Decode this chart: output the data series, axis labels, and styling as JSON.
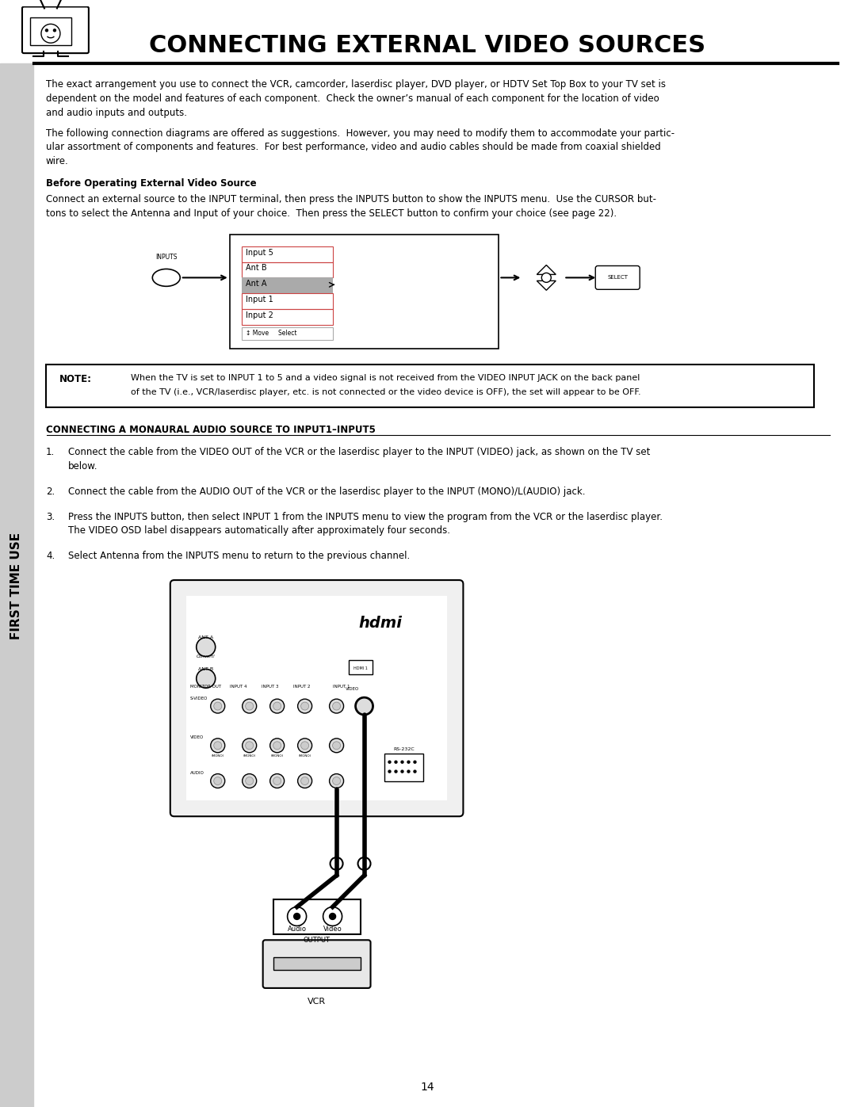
{
  "title": "CONNECTING EXTERNAL VIDEO SOURCES",
  "page_num": "14",
  "bg_color": "#ffffff",
  "sidebar_color": "#808080",
  "sidebar_text": "FIRST TIME USE",
  "para1": "The exact arrangement you use to connect the VCR, camcorder, laserdisc player, DVD player, or HDTV Set Top Box to your TV set is\ndependent on the model and features of each component.  Check the owner’s manual of each component for the location of video\nand audio inputs and outputs.",
  "para2": "The following connection diagrams are offered as suggestions.  However, you may need to modify them to accommodate your partic-\nular assortment of components and features.  For best performance, video and audio cables should be made from coaxial shielded\nwire.",
  "bold_heading": "Before Operating External Video Source",
  "para3": "Connect an external source to the INPUT terminal, then press the INPUTS button to show the INPUTS menu.  Use the CURSOR but-\ntons to select the Antenna and Input of your choice.  Then press the SELECT button to confirm your choice (see page 22).",
  "note_text": "When the TV is set to INPUT 1 to 5 and a video signal is not received from the VIDEO INPUT JACK on the back panel\nof the TV (i.e., VCR/laserdisc player, etc. is not connected or the video device is OFF), the set will appear to be OFF.",
  "section_heading": "CONNECTING A MONAURAL AUDIO SOURCE TO INPUT1–INPUT5",
  "steps": [
    "Connect the cable from the VIDEO OUT of the VCR or the laserdisc player to the INPUT (VIDEO) jack, as shown on the TV set\nbelow.",
    "Connect the cable from the AUDIO OUT of the VCR or the laserdisc player to the INPUT (MONO)/L(AUDIO) jack.",
    "Press the INPUTS button, then select INPUT 1 from the INPUTS menu to view the program from the VCR or the laserdisc player.\nThe VIDEO OSD label disappears automatically after approximately four seconds.",
    "Select Antenna from the INPUTS menu to return to the previous channel."
  ],
  "menu_items": [
    "Input 5",
    "Ant B",
    "Ant A",
    "Input 1",
    "Input 2"
  ],
  "selected_item": "Ant A",
  "menu_hint": "↕ Move     Select"
}
